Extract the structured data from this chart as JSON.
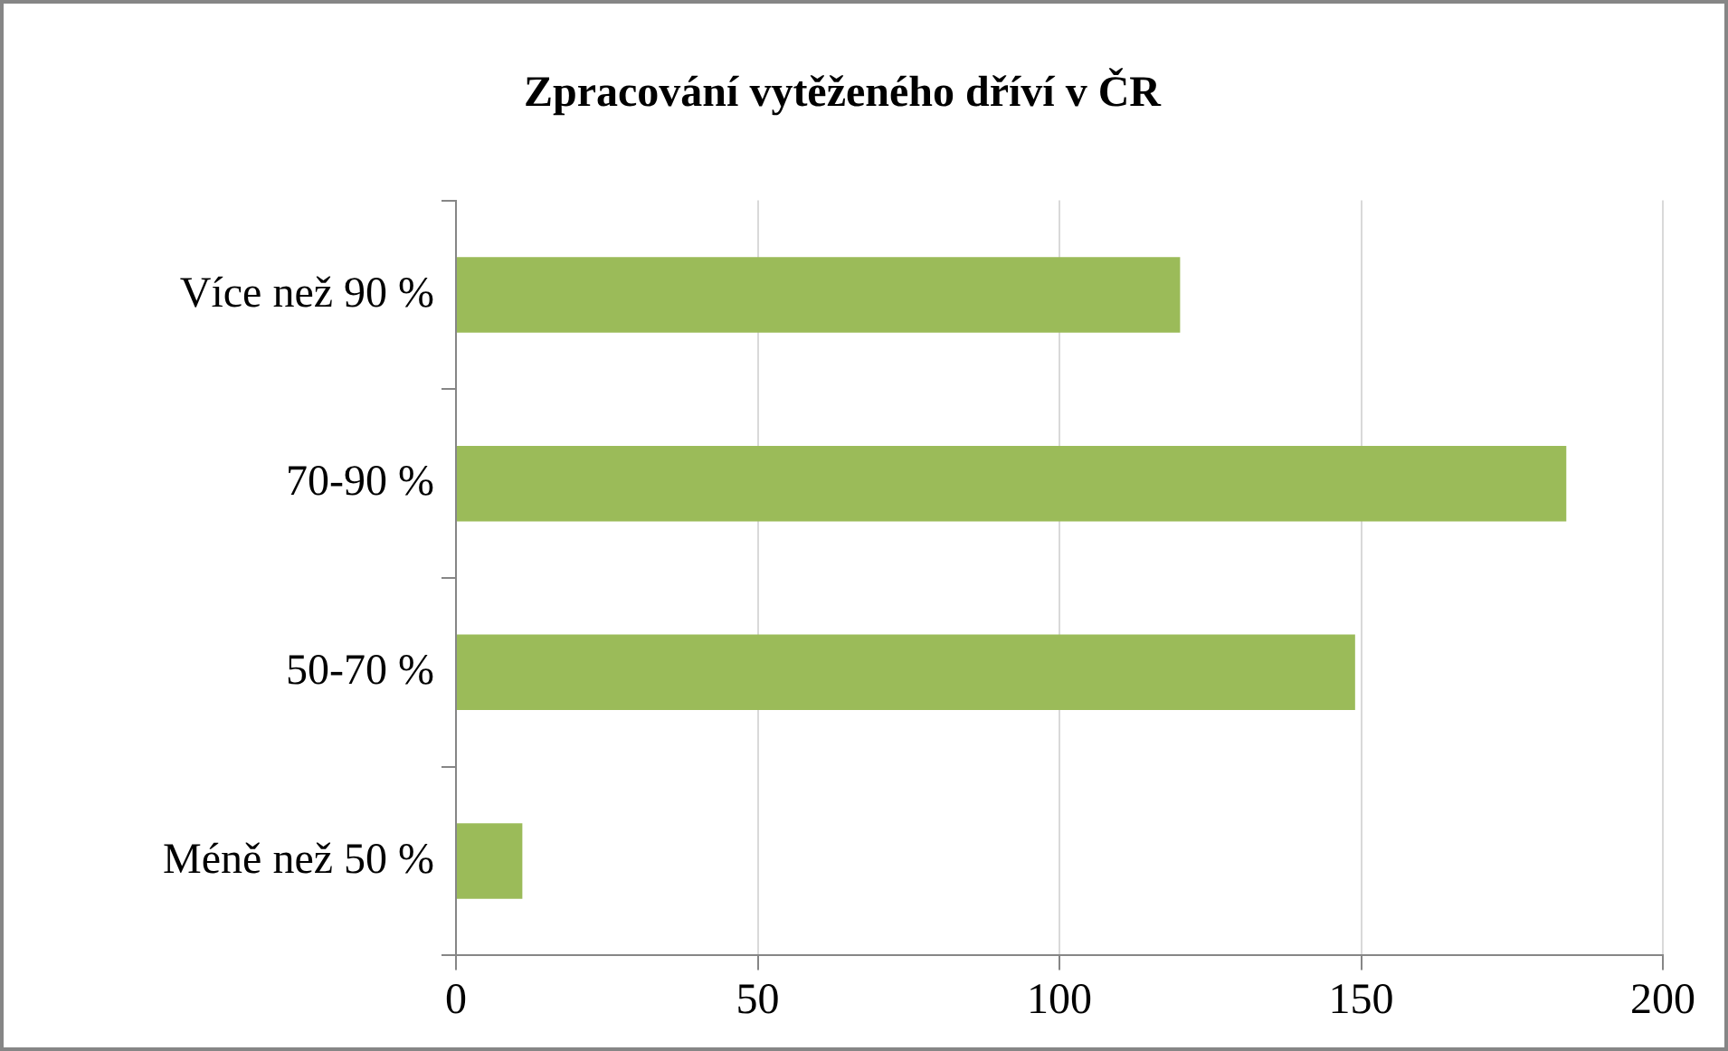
{
  "chart_data": {
    "type": "bar",
    "orientation": "horizontal",
    "title": "Zpracování vytěženého dříví v ČR",
    "categories": [
      "Více než 90 %",
      "70-90 %",
      "50-70 %",
      "Méně než 50 %"
    ],
    "values": [
      120,
      184,
      149,
      11
    ],
    "color": "#9bbb59",
    "xlim": [
      0,
      200
    ],
    "xticks": [
      0,
      50,
      100,
      150,
      200
    ],
    "grid": "x"
  }
}
